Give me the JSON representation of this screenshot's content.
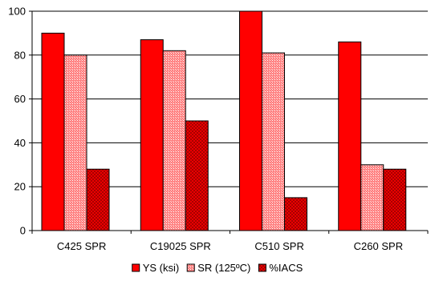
{
  "chart_data": {
    "type": "bar",
    "categories": [
      "C425 SPR",
      "C19025 SPR",
      "C510 SPR",
      "C260 SPR"
    ],
    "series": [
      {
        "name": "YS (ksi)",
        "values": [
          90,
          87,
          100,
          86
        ],
        "color": "#ff0000",
        "pattern": "solid"
      },
      {
        "name": "SR (125ºC)",
        "values": [
          80,
          82,
          81,
          30
        ],
        "color": "#ff8080",
        "pattern": "dotted"
      },
      {
        "name": "%IACS",
        "values": [
          28,
          50,
          15,
          28
        ],
        "color": "#ff0000",
        "pattern": "crosshatch"
      }
    ],
    "ylim": [
      0,
      100
    ],
    "yticks": [
      "0",
      "20",
      "40",
      "60",
      "80",
      "100"
    ],
    "grid": true,
    "legend": "bottom",
    "title": "",
    "xlabel": "",
    "ylabel": ""
  }
}
